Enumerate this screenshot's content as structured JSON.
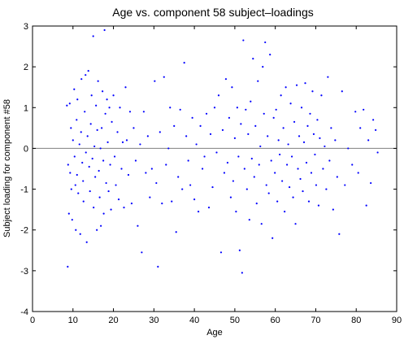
{
  "chart_data": {
    "type": "scatter",
    "title": "Age vs. component 58 subject–loadings",
    "xlabel": "Age",
    "ylabel": "Subject loading for component #58",
    "xlim": [
      0,
      90
    ],
    "ylim": [
      -4,
      3
    ],
    "xticks": [
      0,
      10,
      20,
      30,
      40,
      50,
      60,
      70,
      80,
      90
    ],
    "yticks": [
      -4,
      -3,
      -2,
      -1,
      0,
      1,
      2,
      3
    ],
    "grid": false,
    "legend": "none",
    "reference_line_y": 0,
    "colors": {
      "points": "#0000ff",
      "axes": "#000000",
      "reference_line": "#808080"
    },
    "series": [
      {
        "points": [
          [
            8.5,
            1.05
          ],
          [
            8.8,
            -0.4
          ],
          [
            9.0,
            -1.6
          ],
          [
            8.7,
            -2.9
          ],
          [
            9.2,
            1.1
          ],
          [
            9.5,
            0.5
          ],
          [
            9.3,
            -0.6
          ],
          [
            9.6,
            -1.0
          ],
          [
            9.8,
            -1.75
          ],
          [
            10.0,
            0.2
          ],
          [
            10.3,
            1.45
          ],
          [
            10.4,
            -0.2
          ],
          [
            10.6,
            -0.9
          ],
          [
            10.7,
            -2.0
          ],
          [
            10.9,
            0.7
          ],
          [
            11.1,
            1.2
          ],
          [
            11.0,
            -0.65
          ],
          [
            11.3,
            -1.1
          ],
          [
            11.6,
            0.1
          ],
          [
            11.8,
            -2.1
          ],
          [
            12.0,
            0.4
          ],
          [
            12.1,
            1.7
          ],
          [
            12.3,
            -0.35
          ],
          [
            12.5,
            -0.8
          ],
          [
            12.6,
            -1.3
          ],
          [
            12.9,
            0.9
          ],
          [
            13.1,
            1.8
          ],
          [
            13.2,
            -0.1
          ],
          [
            13.4,
            -2.3
          ],
          [
            13.6,
            0.3
          ],
          [
            13.8,
            1.9
          ],
          [
            14.0,
            -0.45
          ],
          [
            14.2,
            -1.05
          ],
          [
            14.4,
            0.6
          ],
          [
            14.6,
            1.3
          ],
          [
            14.8,
            -0.25
          ],
          [
            15.0,
            2.75
          ],
          [
            15.1,
            -1.45
          ],
          [
            15.3,
            0.05
          ],
          [
            15.5,
            -0.7
          ],
          [
            15.7,
            1.05
          ],
          [
            15.9,
            -2.0
          ],
          [
            16.0,
            0.45
          ],
          [
            16.2,
            1.65
          ],
          [
            16.4,
            -0.55
          ],
          [
            16.6,
            -1.2
          ],
          [
            16.8,
            0.0
          ],
          [
            16.9,
            -1.9
          ],
          [
            17.1,
            0.5
          ],
          [
            17.3,
            1.4
          ],
          [
            17.5,
            -0.3
          ],
          [
            17.6,
            -1.6
          ],
          [
            17.8,
            2.9
          ],
          [
            18.0,
            0.85
          ],
          [
            18.2,
            -0.85
          ],
          [
            18.4,
            1.2
          ],
          [
            18.6,
            0.15
          ],
          [
            18.8,
            -1.05
          ],
          [
            19.0,
            1.0
          ],
          [
            19.2,
            -0.4
          ],
          [
            19.4,
            -1.5
          ],
          [
            19.6,
            0.65
          ],
          [
            20.0,
            1.3
          ],
          [
            20.3,
            -0.2
          ],
          [
            20.6,
            -0.9
          ],
          [
            21.0,
            0.4
          ],
          [
            21.3,
            -1.25
          ],
          [
            21.6,
            1.0
          ],
          [
            22.0,
            -0.5
          ],
          [
            22.3,
            0.15
          ],
          [
            22.6,
            -1.45
          ],
          [
            23.0,
            1.5
          ],
          [
            23.3,
            0.2
          ],
          [
            23.7,
            -0.65
          ],
          [
            24.1,
            0.9
          ],
          [
            24.5,
            -1.35
          ],
          [
            25.0,
            0.5
          ],
          [
            25.5,
            -0.3
          ],
          [
            26.0,
            -1.9
          ],
          [
            26.6,
            0.1
          ],
          [
            27.0,
            -2.55
          ],
          [
            27.5,
            0.9
          ],
          [
            28.0,
            -0.6
          ],
          [
            28.5,
            0.3
          ],
          [
            29.0,
            -1.2
          ],
          [
            29.5,
            -0.5
          ],
          [
            30.2,
            1.65
          ],
          [
            30.6,
            -0.85
          ],
          [
            31.0,
            -2.9
          ],
          [
            31.5,
            0.4
          ],
          [
            32.0,
            -1.35
          ],
          [
            32.5,
            1.75
          ],
          [
            33.0,
            -0.4
          ],
          [
            33.6,
            0.0
          ],
          [
            34.0,
            1.0
          ],
          [
            34.4,
            -1.3
          ],
          [
            35.0,
            0.55
          ],
          [
            35.5,
            -2.05
          ],
          [
            36.0,
            -0.7
          ],
          [
            36.5,
            0.95
          ],
          [
            37.0,
            -1.0
          ],
          [
            37.5,
            2.1
          ],
          [
            38.0,
            0.3
          ],
          [
            38.5,
            -0.3
          ],
          [
            39.0,
            -0.9
          ],
          [
            39.5,
            0.75
          ],
          [
            40.0,
            -1.25
          ],
          [
            40.5,
            0.1
          ],
          [
            41.0,
            -1.55
          ],
          [
            41.5,
            0.55
          ],
          [
            42.0,
            -0.5
          ],
          [
            42.5,
            -0.2
          ],
          [
            43.0,
            0.85
          ],
          [
            43.6,
            -1.45
          ],
          [
            44.0,
            0.35
          ],
          [
            44.5,
            -0.95
          ],
          [
            45.0,
            1.0
          ],
          [
            45.5,
            -0.1
          ],
          [
            46.0,
            1.3
          ],
          [
            46.6,
            -2.55
          ],
          [
            47.0,
            0.45
          ],
          [
            47.4,
            -0.6
          ],
          [
            47.8,
            1.7
          ],
          [
            48.2,
            -0.35
          ],
          [
            48.6,
            0.75
          ],
          [
            49.0,
            -1.2
          ],
          [
            49.3,
            1.5
          ],
          [
            49.6,
            -0.8
          ],
          [
            50.0,
            0.25
          ],
          [
            50.3,
            -1.55
          ],
          [
            50.6,
            1.0
          ],
          [
            50.9,
            -0.2
          ],
          [
            51.2,
            -2.5
          ],
          [
            51.5,
            0.6
          ],
          [
            51.8,
            -3.05
          ],
          [
            52.1,
            2.65
          ],
          [
            52.4,
            -0.5
          ],
          [
            52.7,
            0.95
          ],
          [
            53.0,
            -1.0
          ],
          [
            53.3,
            0.35
          ],
          [
            53.6,
            -1.75
          ],
          [
            53.9,
            1.15
          ],
          [
            54.2,
            -0.25
          ],
          [
            54.5,
            2.2
          ],
          [
            54.8,
            -0.7
          ],
          [
            55.1,
            0.55
          ],
          [
            55.4,
            -1.35
          ],
          [
            55.7,
            1.65
          ],
          [
            56.0,
            -0.4
          ],
          [
            56.3,
            0.05
          ],
          [
            56.6,
            -1.85
          ],
          [
            56.9,
            2.0
          ],
          [
            57.2,
            0.85
          ],
          [
            57.5,
            2.6
          ],
          [
            57.8,
            -0.9
          ],
          [
            58.1,
            0.3
          ],
          [
            58.4,
            -1.1
          ],
          [
            58.7,
            2.3
          ],
          [
            59.0,
            -0.3
          ],
          [
            59.3,
            -2.2
          ],
          [
            59.6,
            0.75
          ],
          [
            59.9,
            -0.6
          ],
          [
            60.2,
            0.95
          ],
          [
            60.5,
            -1.3
          ],
          [
            60.8,
            0.2
          ],
          [
            61.1,
            -0.15
          ],
          [
            61.4,
            1.3
          ],
          [
            61.7,
            -0.8
          ],
          [
            62.0,
            0.5
          ],
          [
            62.3,
            -1.55
          ],
          [
            62.6,
            1.5
          ],
          [
            62.9,
            -0.4
          ],
          [
            63.2,
            0.1
          ],
          [
            63.5,
            -0.95
          ],
          [
            63.8,
            1.1
          ],
          [
            64.1,
            -0.2
          ],
          [
            64.4,
            -1.2
          ],
          [
            64.7,
            0.65
          ],
          [
            65.0,
            -1.85
          ],
          [
            65.3,
            1.55
          ],
          [
            65.6,
            -0.5
          ],
          [
            65.9,
            0.3
          ],
          [
            66.2,
            -0.75
          ],
          [
            66.5,
            1.0
          ],
          [
            66.8,
            -1.05
          ],
          [
            67.1,
            0.15
          ],
          [
            67.4,
            1.6
          ],
          [
            67.7,
            -0.35
          ],
          [
            68.0,
            0.55
          ],
          [
            68.3,
            -1.3
          ],
          [
            68.6,
            0.85
          ],
          [
            68.9,
            -0.6
          ],
          [
            69.2,
            1.4
          ],
          [
            69.5,
            0.35
          ],
          [
            69.8,
            -0.15
          ],
          [
            70.1,
            -0.9
          ],
          [
            70.4,
            0.7
          ],
          [
            70.7,
            -1.4
          ],
          [
            71.0,
            0.25
          ],
          [
            71.4,
            1.3
          ],
          [
            71.8,
            -0.5
          ],
          [
            72.2,
            0.05
          ],
          [
            72.6,
            -1.0
          ],
          [
            73.0,
            1.75
          ],
          [
            73.4,
            -0.3
          ],
          [
            73.8,
            0.5
          ],
          [
            74.3,
            -1.5
          ],
          [
            74.8,
            0.2
          ],
          [
            75.3,
            -0.7
          ],
          [
            75.8,
            -2.1
          ],
          [
            76.5,
            1.4
          ],
          [
            77.2,
            -0.9
          ],
          [
            78.0,
            0.0
          ],
          [
            79.0,
            -0.4
          ],
          [
            79.8,
            0.9
          ],
          [
            80.5,
            -0.6
          ],
          [
            81.0,
            0.5
          ],
          [
            81.8,
            0.95
          ],
          [
            82.5,
            -1.4
          ],
          [
            83.0,
            0.2
          ],
          [
            83.6,
            -0.85
          ],
          [
            84.2,
            0.7
          ],
          [
            84.8,
            0.45
          ],
          [
            85.3,
            -0.1
          ]
        ]
      }
    ]
  }
}
